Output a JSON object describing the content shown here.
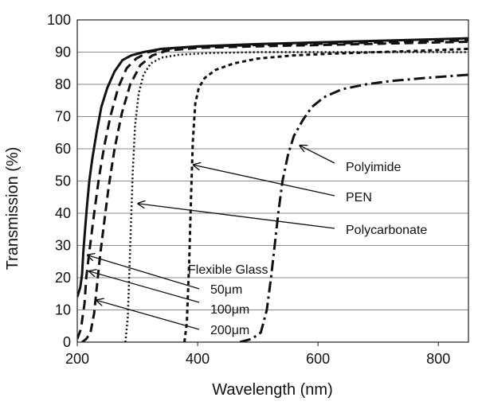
{
  "chart_data": {
    "type": "line",
    "title": "",
    "xlabel": "Wavelength (nm)",
    "ylabel": "Transmission (%)",
    "xlim": [
      200,
      850
    ],
    "ylim": [
      0,
      100
    ],
    "x_ticks": [
      200,
      400,
      600,
      800
    ],
    "y_ticks": [
      0,
      10,
      20,
      30,
      40,
      50,
      60,
      70,
      80,
      90,
      100
    ],
    "grid": "horizontal",
    "series": [
      {
        "key": "glass_50um",
        "dash": "solid",
        "width": 3,
        "points": [
          [
            200,
            14
          ],
          [
            205,
            17
          ],
          [
            208,
            21
          ],
          [
            210,
            28
          ],
          [
            213,
            35
          ],
          [
            216,
            42
          ],
          [
            220,
            50
          ],
          [
            225,
            57
          ],
          [
            232,
            65
          ],
          [
            240,
            73
          ],
          [
            250,
            79
          ],
          [
            262,
            84
          ],
          [
            275,
            87.5
          ],
          [
            290,
            89
          ],
          [
            310,
            90
          ],
          [
            340,
            91
          ],
          [
            400,
            91.8
          ],
          [
            500,
            92.5
          ],
          [
            600,
            93
          ],
          [
            700,
            93.5
          ],
          [
            800,
            94
          ],
          [
            850,
            94.3
          ]
        ]
      },
      {
        "key": "glass_100um",
        "dash": "12,7",
        "width": 3,
        "points": [
          [
            200,
            1
          ],
          [
            206,
            4
          ],
          [
            212,
            12
          ],
          [
            215,
            20
          ],
          [
            220,
            28
          ],
          [
            228,
            40
          ],
          [
            236,
            51
          ],
          [
            245,
            61
          ],
          [
            255,
            70
          ],
          [
            268,
            79
          ],
          [
            282,
            85
          ],
          [
            298,
            88
          ],
          [
            318,
            90
          ],
          [
            350,
            91
          ],
          [
            400,
            91.7
          ],
          [
            500,
            92.2
          ],
          [
            600,
            92.6
          ],
          [
            700,
            93
          ],
          [
            800,
            93.4
          ],
          [
            850,
            93.6
          ]
        ]
      },
      {
        "key": "glass_200um",
        "dash": "11,6",
        "width": 3,
        "points": [
          [
            208,
            0
          ],
          [
            215,
            1
          ],
          [
            222,
            3
          ],
          [
            228,
            9
          ],
          [
            233,
            18
          ],
          [
            238,
            27
          ],
          [
            244,
            36
          ],
          [
            252,
            48
          ],
          [
            262,
            60
          ],
          [
            274,
            71
          ],
          [
            288,
            80
          ],
          [
            305,
            86
          ],
          [
            325,
            89
          ],
          [
            350,
            90.5
          ],
          [
            400,
            91.3
          ],
          [
            500,
            91.8
          ],
          [
            600,
            92.2
          ],
          [
            700,
            92.6
          ],
          [
            800,
            93
          ],
          [
            850,
            93.2
          ]
        ]
      },
      {
        "key": "polycarbonate",
        "dash": "2,3",
        "width": 2.5,
        "points": [
          [
            280,
            0
          ],
          [
            284,
            8
          ],
          [
            288,
            30
          ],
          [
            292,
            52
          ],
          [
            296,
            67
          ],
          [
            302,
            77
          ],
          [
            310,
            83
          ],
          [
            322,
            86.5
          ],
          [
            340,
            88.3
          ],
          [
            370,
            89.2
          ],
          [
            420,
            89.7
          ],
          [
            500,
            90
          ],
          [
            600,
            90
          ],
          [
            700,
            90
          ],
          [
            800,
            90
          ],
          [
            850,
            90
          ]
        ]
      },
      {
        "key": "pen",
        "dash": "5,4",
        "width": 3,
        "points": [
          [
            378,
            0
          ],
          [
            382,
            6
          ],
          [
            386,
            25
          ],
          [
            389,
            45
          ],
          [
            392,
            62
          ],
          [
            396,
            74
          ],
          [
            402,
            79
          ],
          [
            412,
            82
          ],
          [
            430,
            84.5
          ],
          [
            460,
            86.5
          ],
          [
            500,
            88
          ],
          [
            560,
            89
          ],
          [
            620,
            89.5
          ],
          [
            700,
            90
          ],
          [
            780,
            90.5
          ],
          [
            850,
            91
          ]
        ]
      },
      {
        "key": "polyimide",
        "dash": "14,5,3,5",
        "width": 3,
        "points": [
          [
            470,
            0
          ],
          [
            490,
            1
          ],
          [
            505,
            3
          ],
          [
            515,
            10
          ],
          [
            522,
            20
          ],
          [
            528,
            30
          ],
          [
            534,
            40
          ],
          [
            541,
            50
          ],
          [
            550,
            58
          ],
          [
            560,
            64
          ],
          [
            575,
            69
          ],
          [
            590,
            73
          ],
          [
            610,
            76
          ],
          [
            640,
            78.5
          ],
          [
            680,
            80
          ],
          [
            720,
            81
          ],
          [
            780,
            82
          ],
          [
            850,
            83
          ]
        ]
      }
    ],
    "annotations": {
      "polyimide": "Polyimide",
      "pen": "PEN",
      "polycarbonate": "Polycarbonate",
      "flexible_glass": "Flexible Glass",
      "glass_50um": "50μm",
      "glass_100um": "100μm",
      "glass_200um": "200μm"
    }
  }
}
